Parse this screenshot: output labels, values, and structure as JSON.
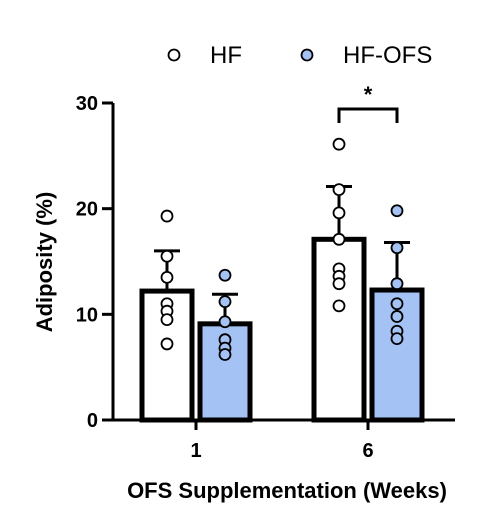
{
  "chart_data": {
    "type": "bar",
    "title": "",
    "xlabel": "OFS Supplementation (Weeks)",
    "ylabel": "Adiposity (%)",
    "ylim": [
      0,
      30
    ],
    "yticks": [
      0,
      10,
      20,
      30
    ],
    "categories": [
      "1",
      "6"
    ],
    "legend": {
      "placement": "top"
    },
    "grid": false,
    "series": [
      {
        "name": "HF",
        "color": "#ffffff",
        "values": [
          12.2,
          17.1
        ],
        "errors": [
          3.8,
          5.0
        ],
        "points": [
          [
            19.3,
            15.5,
            13.5,
            11.0,
            10.3,
            9.5,
            7.2
          ],
          [
            26.1,
            21.8,
            19.6,
            17.1,
            14.3,
            13.6,
            12.9,
            10.8
          ]
        ]
      },
      {
        "name": "HF-OFS",
        "color": "#a4c2f4",
        "values": [
          9.1,
          12.3
        ],
        "errors": [
          2.8,
          4.5
        ],
        "points": [
          [
            13.7,
            11.2,
            9.3,
            7.6,
            6.8,
            6.2
          ],
          [
            19.8,
            16.3,
            12.9,
            11.0,
            9.8,
            8.4,
            7.7
          ]
        ]
      }
    ],
    "annotations": [
      {
        "text": "*",
        "category": "6",
        "between": [
          "HF",
          "HF-OFS"
        ]
      }
    ]
  }
}
